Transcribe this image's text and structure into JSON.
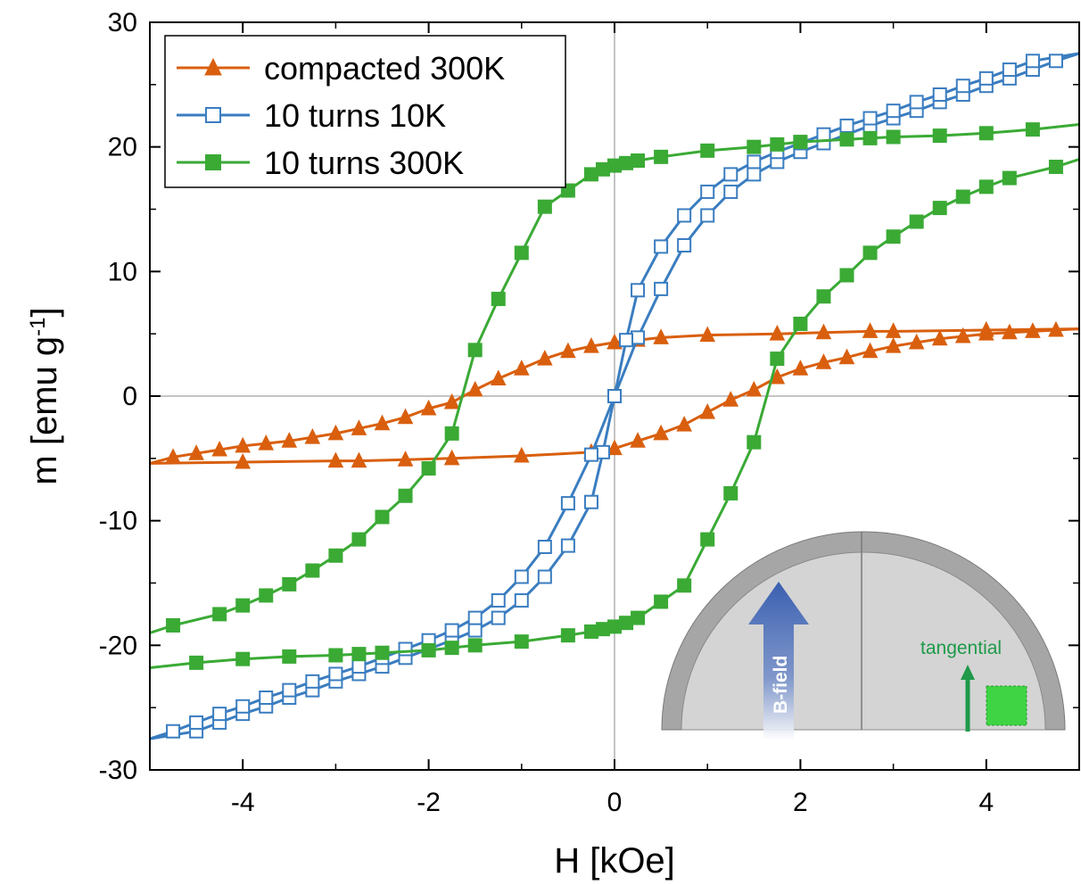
{
  "chart_data": {
    "type": "scatter",
    "title": "",
    "xlabel": "H [kOe]",
    "ylabel_main": "m [emu g",
    "ylabel_sup": "-1",
    "ylabel_end": "]",
    "xlim": [
      -5,
      5
    ],
    "ylim": [
      -30,
      30
    ],
    "xticks": [
      -4,
      -2,
      0,
      2,
      4
    ],
    "xtick_labels": [
      "-4",
      "-2",
      "0",
      "2",
      "4"
    ],
    "yticks": [
      -30,
      -20,
      -10,
      0,
      10,
      20,
      30
    ],
    "ytick_labels": [
      "-30",
      "-20",
      "-10",
      "0",
      "10",
      "20",
      "30"
    ],
    "zero_lines": true,
    "legend_position": "top-left",
    "series": [
      {
        "name": "compacted 300K",
        "color": "#d95f0e",
        "marker": "triangle",
        "filled": true,
        "branches": [
          [
            [
              5,
              5.4
            ],
            [
              4.75,
              5.3
            ],
            [
              4.5,
              5.2
            ],
            [
              4.25,
              5.1
            ],
            [
              4,
              5.0
            ],
            [
              3.75,
              4.8
            ],
            [
              3.5,
              4.6
            ],
            [
              3.25,
              4.3
            ],
            [
              3.0,
              4.0
            ],
            [
              2.75,
              3.6
            ],
            [
              2.5,
              3.1
            ],
            [
              2.25,
              2.7
            ],
            [
              2.0,
              2.2
            ],
            [
              1.75,
              1.5
            ],
            [
              1.5,
              0.5
            ],
            [
              1.25,
              -0.3
            ],
            [
              1.0,
              -1.3
            ],
            [
              0.75,
              -2.3
            ],
            [
              0.5,
              -3.0
            ],
            [
              0.25,
              -3.6
            ],
            [
              0.0,
              -4.2
            ],
            [
              -0.25,
              -4.5
            ],
            [
              -1.0,
              -4.8
            ],
            [
              -1.75,
              -5.0
            ],
            [
              -2.25,
              -5.1
            ],
            [
              -2.75,
              -5.2
            ],
            [
              -3.0,
              -5.2
            ],
            [
              -4.0,
              -5.3
            ],
            [
              -5.0,
              -5.4
            ]
          ],
          [
            [
              -5,
              -5.4
            ],
            [
              -4.75,
              -4.9
            ],
            [
              -4.5,
              -4.6
            ],
            [
              -4.25,
              -4.3
            ],
            [
              -4.0,
              -4.0
            ],
            [
              -3.75,
              -3.8
            ],
            [
              -3.5,
              -3.6
            ],
            [
              -3.25,
              -3.3
            ],
            [
              -3.0,
              -3.0
            ],
            [
              -2.75,
              -2.6
            ],
            [
              -2.5,
              -2.2
            ],
            [
              -2.25,
              -1.7
            ],
            [
              -2.0,
              -1.0
            ],
            [
              -1.75,
              -0.5
            ],
            [
              -1.5,
              0.5
            ],
            [
              -1.25,
              1.4
            ],
            [
              -1.0,
              2.2
            ],
            [
              -0.75,
              3.0
            ],
            [
              -0.5,
              3.6
            ],
            [
              -0.25,
              4.0
            ],
            [
              0.0,
              4.3
            ],
            [
              0.25,
              4.5
            ],
            [
              0.5,
              4.7
            ],
            [
              1.0,
              4.9
            ],
            [
              1.75,
              5.0
            ],
            [
              2.25,
              5.1
            ],
            [
              2.75,
              5.2
            ],
            [
              3.0,
              5.2
            ],
            [
              4.0,
              5.3
            ],
            [
              5.0,
              5.4
            ]
          ]
        ]
      },
      {
        "name": "10 turns 10K",
        "color": "#3a7dc0",
        "marker": "square",
        "filled": false,
        "branches": [
          [
            [
              5,
              27.5
            ],
            [
              4.75,
              26.9
            ],
            [
              4.5,
              26.2
            ],
            [
              4.25,
              25.5
            ],
            [
              4.0,
              24.9
            ],
            [
              3.75,
              24.2
            ],
            [
              3.5,
              23.6
            ],
            [
              3.25,
              22.9
            ],
            [
              3.0,
              22.3
            ],
            [
              2.75,
              21.7
            ],
            [
              2.5,
              21.0
            ],
            [
              2.25,
              20.3
            ],
            [
              2.0,
              19.6
            ],
            [
              1.75,
              18.8
            ],
            [
              1.5,
              17.8
            ],
            [
              1.25,
              16.4
            ],
            [
              1.0,
              14.5
            ],
            [
              0.75,
              12.1
            ],
            [
              0.5,
              8.6
            ],
            [
              0.25,
              4.7
            ],
            [
              0.0,
              0.0
            ],
            [
              -0.125,
              -4.5
            ],
            [
              -0.25,
              -8.5
            ],
            [
              -0.5,
              -12.0
            ],
            [
              -0.75,
              -14.5
            ],
            [
              -1.0,
              -16.4
            ],
            [
              -1.25,
              -17.8
            ],
            [
              -1.5,
              -18.8
            ],
            [
              -1.75,
              -19.6
            ],
            [
              -2.0,
              -20.3
            ],
            [
              -2.25,
              -21.0
            ],
            [
              -2.5,
              -21.7
            ],
            [
              -2.75,
              -22.3
            ],
            [
              -3.0,
              -22.9
            ],
            [
              -3.25,
              -23.6
            ],
            [
              -3.5,
              -24.2
            ],
            [
              -3.75,
              -24.9
            ],
            [
              -4.0,
              -25.5
            ],
            [
              -4.25,
              -26.2
            ],
            [
              -4.5,
              -26.9
            ],
            [
              -5.0,
              -27.5
            ]
          ],
          [
            [
              -5,
              -27.5
            ],
            [
              -4.75,
              -26.9
            ],
            [
              -4.5,
              -26.2
            ],
            [
              -4.25,
              -25.5
            ],
            [
              -4.0,
              -24.9
            ],
            [
              -3.75,
              -24.2
            ],
            [
              -3.5,
              -23.6
            ],
            [
              -3.25,
              -22.9
            ],
            [
              -3.0,
              -22.3
            ],
            [
              -2.75,
              -21.7
            ],
            [
              -2.5,
              -21.0
            ],
            [
              -2.25,
              -20.3
            ],
            [
              -2.0,
              -19.6
            ],
            [
              -1.75,
              -18.8
            ],
            [
              -1.5,
              -17.8
            ],
            [
              -1.25,
              -16.4
            ],
            [
              -1.0,
              -14.5
            ],
            [
              -0.75,
              -12.1
            ],
            [
              -0.5,
              -8.6
            ],
            [
              -0.25,
              -4.7
            ],
            [
              0.0,
              0.0
            ],
            [
              0.125,
              4.5
            ],
            [
              0.25,
              8.5
            ],
            [
              0.5,
              12.0
            ],
            [
              0.75,
              14.5
            ],
            [
              1.0,
              16.4
            ],
            [
              1.25,
              17.8
            ],
            [
              1.5,
              18.8
            ],
            [
              1.75,
              19.6
            ],
            [
              2.0,
              20.3
            ],
            [
              2.25,
              21.0
            ],
            [
              2.5,
              21.7
            ],
            [
              2.75,
              22.3
            ],
            [
              3.0,
              22.9
            ],
            [
              3.25,
              23.6
            ],
            [
              3.5,
              24.2
            ],
            [
              3.75,
              24.9
            ],
            [
              4.0,
              25.5
            ],
            [
              4.25,
              26.2
            ],
            [
              4.5,
              26.9
            ],
            [
              5.0,
              27.5
            ]
          ]
        ]
      },
      {
        "name": "10 turns 300K",
        "color": "#3aaa35",
        "marker": "square",
        "filled": true,
        "branches": [
          [
            [
              5,
              21.8
            ],
            [
              4.5,
              21.4
            ],
            [
              4.0,
              21.1
            ],
            [
              3.5,
              20.9
            ],
            [
              3.0,
              20.8
            ],
            [
              2.75,
              20.7
            ],
            [
              2.5,
              20.6
            ],
            [
              2.0,
              20.4
            ],
            [
              1.75,
              20.2
            ],
            [
              1.5,
              20.0
            ],
            [
              1.0,
              19.7
            ],
            [
              0.5,
              19.2
            ],
            [
              0.25,
              18.9
            ],
            [
              0.125,
              18.7
            ],
            [
              0.0,
              18.5
            ],
            [
              -0.125,
              18.2
            ],
            [
              -0.25,
              17.8
            ],
            [
              -0.5,
              16.5
            ],
            [
              -0.75,
              15.2
            ],
            [
              -1.0,
              11.5
            ],
            [
              -1.25,
              7.8
            ],
            [
              -1.5,
              3.7
            ],
            [
              -1.75,
              -3.0
            ],
            [
              -2.0,
              -5.8
            ],
            [
              -2.25,
              -8.0
            ],
            [
              -2.5,
              -9.7
            ],
            [
              -2.75,
              -11.5
            ],
            [
              -3.0,
              -12.8
            ],
            [
              -3.25,
              -14.0
            ],
            [
              -3.5,
              -15.1
            ],
            [
              -3.75,
              -16.0
            ],
            [
              -4.0,
              -16.8
            ],
            [
              -4.25,
              -17.5
            ],
            [
              -4.75,
              -18.4
            ],
            [
              -5.0,
              -19.0
            ]
          ],
          [
            [
              -5,
              -21.8
            ],
            [
              -4.5,
              -21.4
            ],
            [
              -4.0,
              -21.1
            ],
            [
              -3.5,
              -20.9
            ],
            [
              -3.0,
              -20.8
            ],
            [
              -2.75,
              -20.7
            ],
            [
              -2.5,
              -20.6
            ],
            [
              -2.0,
              -20.4
            ],
            [
              -1.75,
              -20.2
            ],
            [
              -1.5,
              -20.0
            ],
            [
              -1.0,
              -19.7
            ],
            [
              -0.5,
              -19.2
            ],
            [
              -0.25,
              -18.9
            ],
            [
              -0.125,
              -18.7
            ],
            [
              0.0,
              -18.5
            ],
            [
              0.125,
              -18.2
            ],
            [
              0.25,
              -17.8
            ],
            [
              0.5,
              -16.5
            ],
            [
              0.75,
              -15.2
            ],
            [
              1.0,
              -11.5
            ],
            [
              1.25,
              -7.8
            ],
            [
              1.5,
              -3.7
            ],
            [
              1.75,
              3.0
            ],
            [
              2.0,
              5.8
            ],
            [
              2.25,
              8.0
            ],
            [
              2.5,
              9.7
            ],
            [
              2.75,
              11.5
            ],
            [
              3.0,
              12.8
            ],
            [
              3.25,
              14.0
            ],
            [
              3.5,
              15.1
            ],
            [
              3.75,
              16.0
            ],
            [
              4.0,
              16.8
            ],
            [
              4.25,
              17.5
            ],
            [
              4.75,
              18.4
            ],
            [
              5.0,
              19.0
            ]
          ]
        ]
      }
    ],
    "inset": {
      "labels": [
        "B-field",
        "tangential"
      ],
      "colors": {
        "ring": "#a6a6a6",
        "body": "#d4d4d4",
        "bfield": "#3a5fb0",
        "tangential": "#1e9a4a",
        "sample": "#3fd444"
      }
    }
  }
}
